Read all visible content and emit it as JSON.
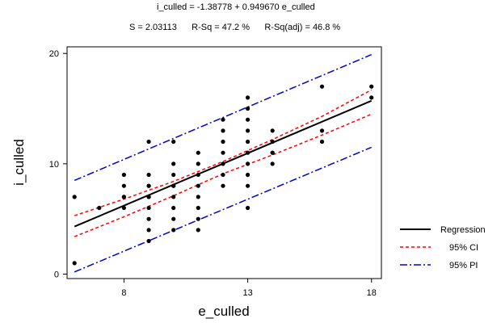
{
  "chart_data": {
    "type": "scatter",
    "title": "i_culled = -1.38778 + 0.949670 e_culled",
    "subtitle": "S = 2.03113      R-Sq = 47.2 %      R-Sq(adj) = 46.8 %",
    "xlabel": "e_culled",
    "ylabel": "i_culled",
    "xlim": [
      5.7,
      18.4
    ],
    "ylim": [
      -0.4,
      20.6
    ],
    "xticks": [
      8,
      13,
      18
    ],
    "yticks": [
      0,
      10,
      20
    ],
    "grid": false,
    "legend_position": "right",
    "regression": {
      "intercept": -1.38778,
      "slope": 0.94967
    },
    "series": [
      {
        "name": "Regression",
        "color": "#000000",
        "style": "solid",
        "x": [
          6,
          18
        ],
        "y": [
          4.31,
          15.71
        ]
      },
      {
        "name": "95% CI",
        "color": "#ff0000",
        "style": "dashed",
        "x": [
          6,
          8,
          10,
          11,
          12,
          14,
          16,
          18
        ],
        "upper": [
          5.3,
          6.8,
          8.4,
          9.3,
          10.2,
          12.2,
          14.3,
          16.7
        ],
        "lower": [
          3.4,
          5.2,
          7.1,
          8.1,
          9.1,
          10.8,
          12.6,
          14.5
        ]
      },
      {
        "name": "95% PI",
        "color": "#0000cc",
        "style": "dashdot",
        "x": [
          6,
          18
        ],
        "upper": [
          8.5,
          19.9
        ],
        "lower": [
          0.2,
          11.5
        ]
      }
    ],
    "points": {
      "x": [
        6,
        6,
        7,
        8,
        8,
        8,
        8,
        8,
        9,
        9,
        9,
        9,
        9,
        9,
        9,
        9,
        9,
        9,
        10,
        10,
        10,
        10,
        10,
        10,
        10,
        10,
        10,
        11,
        11,
        11,
        11,
        11,
        11,
        11,
        11,
        12,
        12,
        12,
        12,
        12,
        12,
        12,
        13,
        13,
        13,
        13,
        13,
        13,
        13,
        13,
        13,
        13,
        14,
        14,
        14,
        14,
        14,
        16,
        16,
        16,
        18,
        18
      ],
      "y": [
        7,
        1,
        6,
        9,
        8,
        7,
        7,
        6,
        12,
        9,
        8,
        8,
        7,
        7,
        6,
        5,
        4,
        3,
        12,
        10,
        9,
        8,
        8,
        7,
        6,
        5,
        4,
        11,
        10,
        9,
        8,
        7,
        6,
        5,
        4,
        14,
        13,
        12,
        11,
        10,
        9,
        8,
        16,
        15,
        14,
        13,
        12,
        11,
        10,
        9,
        8,
        6,
        13,
        12,
        11,
        11,
        10,
        17,
        13,
        12,
        17,
        16
      ]
    }
  }
}
